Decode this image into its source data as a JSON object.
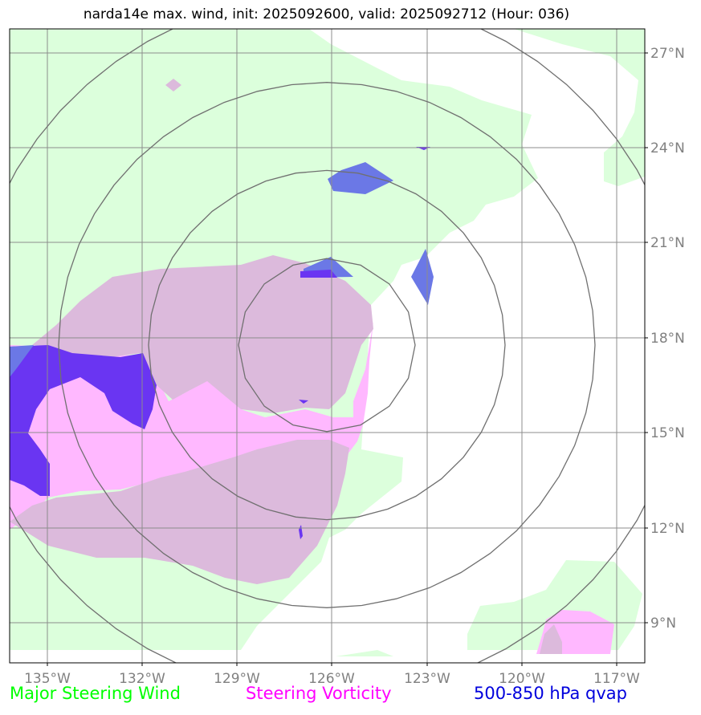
{
  "title": "narda14e max. wind, init: 2025092600, valid: 2025092712 (Hour: 036)",
  "axes": {
    "lon_labels": [
      "135°W",
      "132°W",
      "129°W",
      "126°W",
      "123°W",
      "120°W",
      "117°W"
    ],
    "lat_labels": [
      "27°N",
      "24°N",
      "21°N",
      "18°N",
      "15°N",
      "12°N",
      "9°N"
    ]
  },
  "legend": {
    "wind": {
      "label": "Major Steering Wind",
      "color": "#00ff00"
    },
    "vorticity": {
      "label": "Steering Vorticity",
      "color": "#ff00ff"
    },
    "qvap": {
      "label": "500-850 hPa qvap",
      "color": "#0000dd"
    }
  },
  "colors": {
    "wind_fill": "#dcffdc",
    "vort_light": "#ffb8ff",
    "vort_dark": "#dcbadc",
    "qvap_light": "#6b78e6",
    "qvap_dark": "#6a35f2",
    "grid": "#8c8c8c",
    "range_ring": "#707070",
    "tick_text": "#808080"
  }
}
